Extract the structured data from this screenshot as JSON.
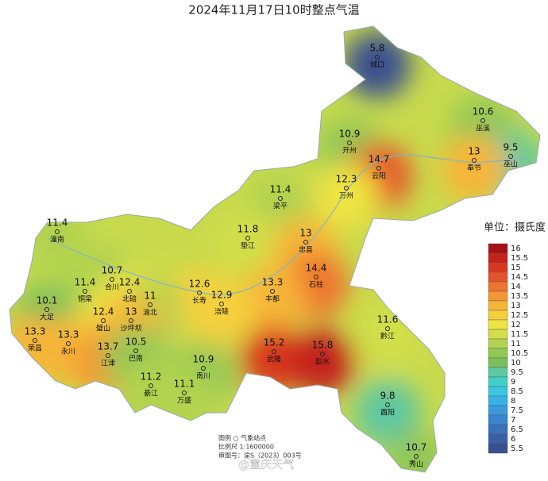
{
  "title": "2024年11月17日10时整点气温",
  "unit_label": "单位：摄氏度",
  "stations": [
    {
      "name": "城口",
      "temp": 5.8
    },
    {
      "name": "巫溪",
      "temp": 10.6
    },
    {
      "name": "巫山",
      "temp": 9.5
    },
    {
      "name": "奉节",
      "temp": 13
    },
    {
      "name": "开州",
      "temp": 10.9
    },
    {
      "name": "云阳",
      "temp": 14.7
    },
    {
      "name": "万州",
      "temp": 12.3
    },
    {
      "name": "梁平",
      "temp": 11.4
    },
    {
      "name": "垫江",
      "temp": 11.8
    },
    {
      "name": "忠县",
      "temp": 13
    },
    {
      "name": "石柱",
      "temp": 14.4
    },
    {
      "name": "丰都",
      "temp": 13.3
    },
    {
      "name": "长寿",
      "temp": 12.6
    },
    {
      "name": "涪陵",
      "temp": 12.9
    },
    {
      "name": "潼南",
      "temp": 11.4
    },
    {
      "name": "合川",
      "temp": 10.7
    },
    {
      "name": "铜梁",
      "temp": 11.4
    },
    {
      "name": "北碚",
      "temp": 12.4
    },
    {
      "name": "渝北",
      "temp": 11
    },
    {
      "name": "大足",
      "temp": 10.1
    },
    {
      "name": "璧山",
      "temp": 12.4
    },
    {
      "name": "沙坪坝",
      "temp": 13
    },
    {
      "name": "荣昌",
      "temp": 13.3
    },
    {
      "name": "永川",
      "temp": 13.3
    },
    {
      "name": "江津",
      "temp": 13.7
    },
    {
      "name": "巴南",
      "temp": 10.5
    },
    {
      "name": "南川",
      "temp": 10.9
    },
    {
      "name": "武隆",
      "temp": 15.2
    },
    {
      "name": "彭水",
      "temp": 15.8
    },
    {
      "name": "黔江",
      "temp": 11.6
    },
    {
      "name": "綦江",
      "temp": 11.2
    },
    {
      "name": "万盛",
      "temp": 11.1
    },
    {
      "name": "酉阳",
      "temp": 9.8
    },
    {
      "name": "秀山",
      "temp": 10.7
    }
  ],
  "legend": [
    {
      "value": 16,
      "color": "#a50f15"
    },
    {
      "value": 15.5,
      "color": "#c4231a"
    },
    {
      "value": 15,
      "color": "#d9381e"
    },
    {
      "value": 14.5,
      "color": "#e6532a"
    },
    {
      "value": 14,
      "color": "#ee742f"
    },
    {
      "value": 13.5,
      "color": "#f49633"
    },
    {
      "value": 13,
      "color": "#f7b538"
    },
    {
      "value": 12.5,
      "color": "#f5d03c"
    },
    {
      "value": 12,
      "color": "#efe442"
    },
    {
      "value": 11.5,
      "color": "#d2df4a"
    },
    {
      "value": 11,
      "color": "#b2d350"
    },
    {
      "value": 10.5,
      "color": "#93c756"
    },
    {
      "value": 10,
      "color": "#7bbf5c"
    },
    {
      "value": 9.5,
      "color": "#5ec8a0"
    },
    {
      "value": 9,
      "color": "#40d0c8"
    },
    {
      "value": 8.5,
      "color": "#3cc6e0"
    },
    {
      "value": 8,
      "color": "#38b2e6"
    },
    {
      "value": 7.5,
      "color": "#3b9ade"
    },
    {
      "value": 7,
      "color": "#3a85cf"
    },
    {
      "value": 6.5,
      "color": "#3a71bb"
    },
    {
      "value": 6,
      "color": "#3a5fa7"
    },
    {
      "value": 5.5,
      "color": "#3a4f90"
    }
  ],
  "footer": {
    "legend_note": "图例  ○  气象站点",
    "scale": "比例尺  1:1600000",
    "approval": "审图号：渝S（2023）003号",
    "watermark": "@重庆天气"
  }
}
